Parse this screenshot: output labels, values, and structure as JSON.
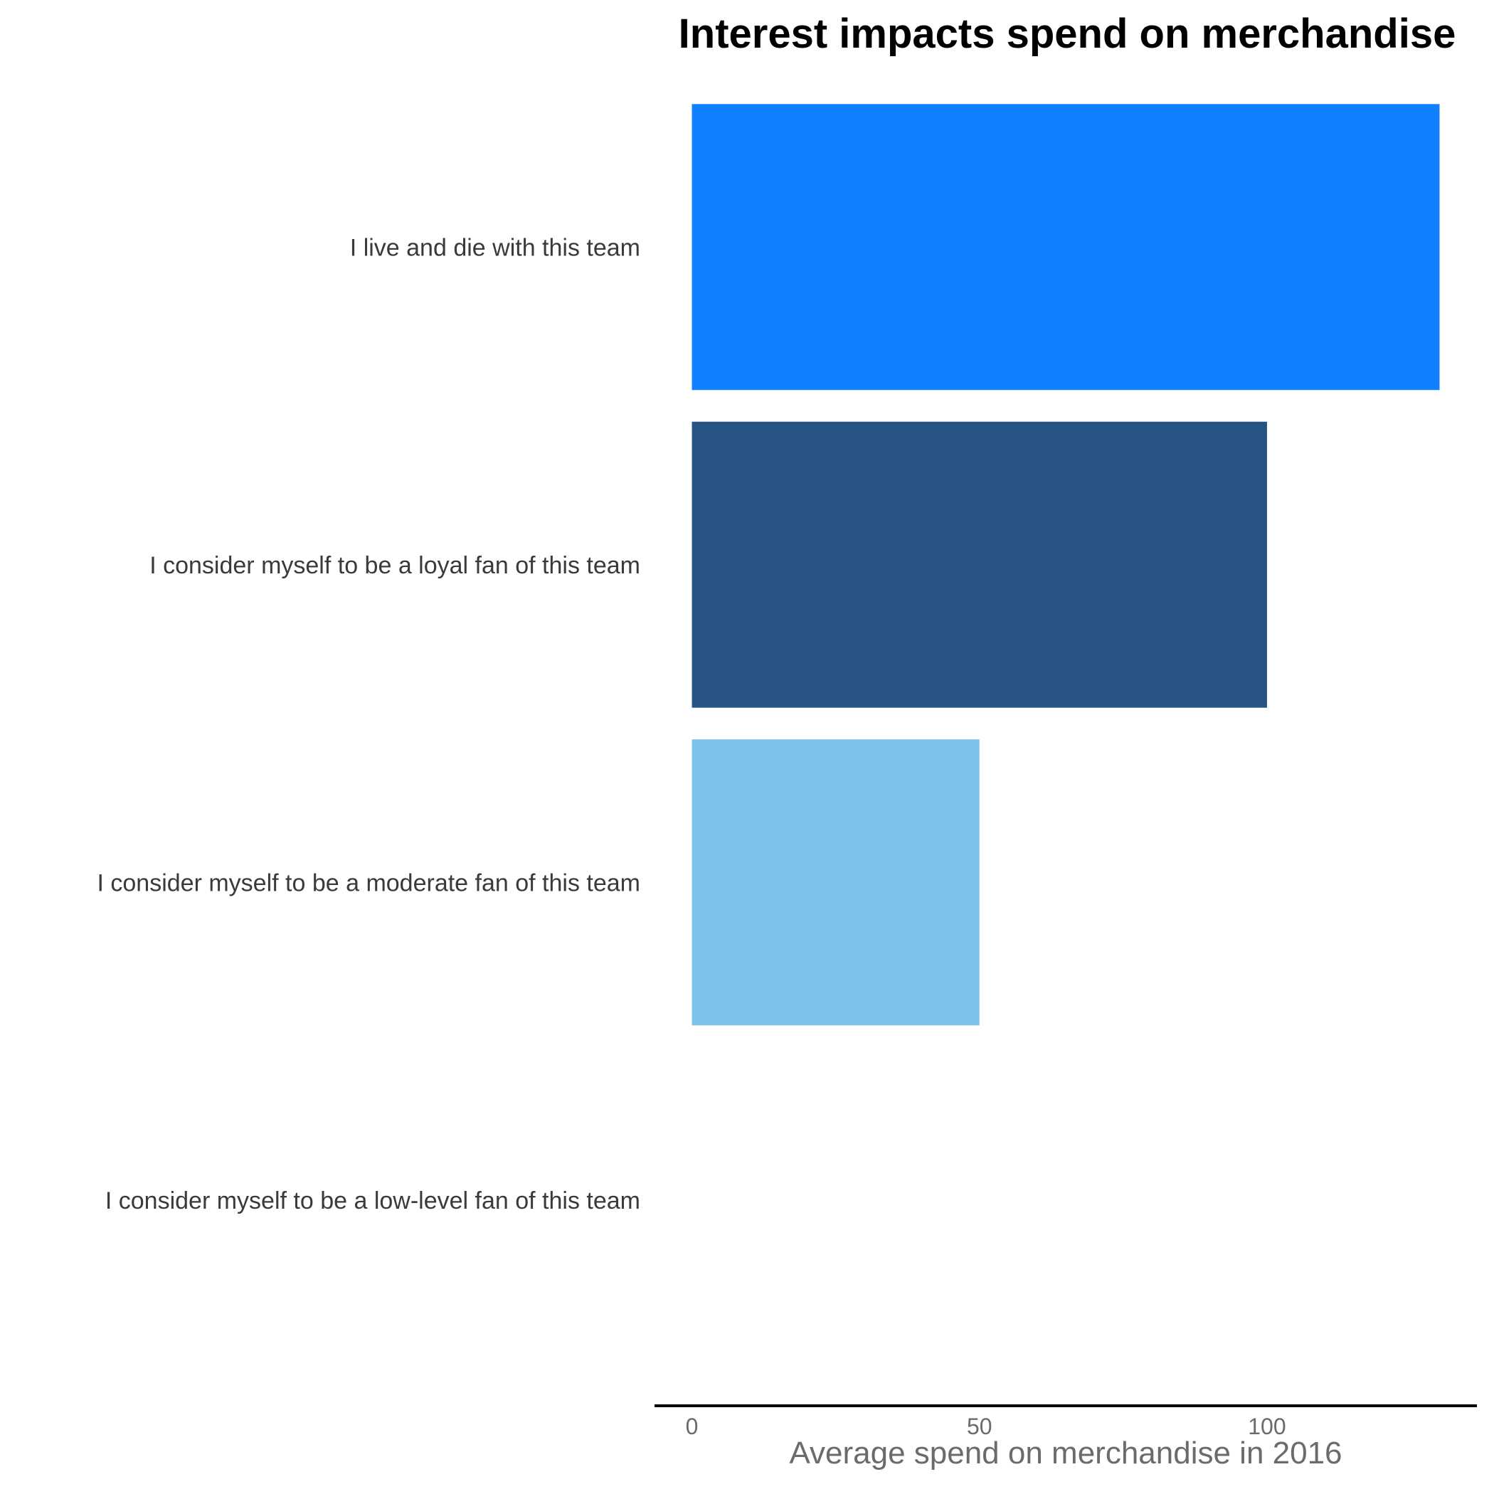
{
  "chart_data": {
    "type": "bar",
    "orientation": "horizontal",
    "title": "Interest impacts spend on merchandise",
    "xlabel": "Average spend on merchandise in 2016",
    "ylabel": "",
    "categories": [
      "I live and die with this team",
      "I consider myself to be a loyal fan of this team",
      "I consider myself to be a moderate fan of this team",
      "I consider myself to be a low-level fan of this team"
    ],
    "values": [
      130,
      100,
      50,
      0
    ],
    "colors": [
      "#1180ff",
      "#285385",
      "#7cc3ec",
      "#7cc3ec"
    ],
    "xlim": [
      -6.5,
      136.5
    ],
    "xticks": [
      0,
      50,
      100
    ],
    "xtick_labels": [
      "0",
      "50",
      "100"
    ],
    "grid": false,
    "legend": "none"
  }
}
